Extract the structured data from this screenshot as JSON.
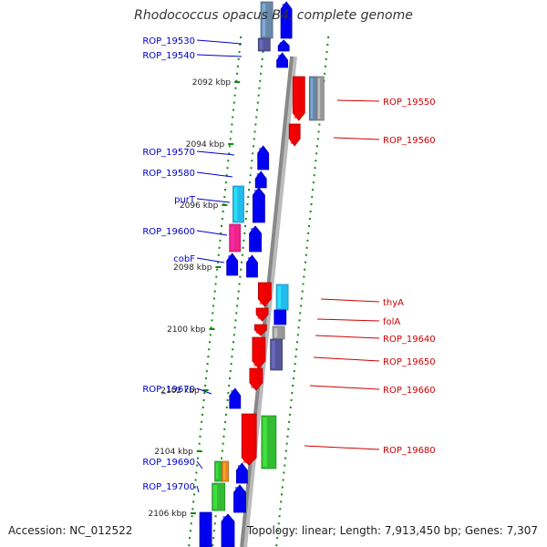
{
  "title": "Rhodococcus opacus B4, complete genome",
  "footer": {
    "accession": "Accession: NC_012522",
    "summary": "Topology: linear; Length: 7,913,450 bp; Genes: 7,307"
  },
  "colors": {
    "blue": "#0000ee",
    "red": "#ee0000",
    "cyan": "#22bbee",
    "magenta": "#ee2288",
    "green": "#33bb33",
    "orange": "#ee8822",
    "slate": "#555599",
    "steel": "#6688aa",
    "gray": "#999999",
    "axis": "#888888",
    "tick": "#118811",
    "blue_label": "#0000cc",
    "red_label": "#cc0000"
  },
  "positions": [
    {
      "label": "2092 kbp"
    },
    {
      "label": "2094 kbp"
    },
    {
      "label": "2096 kbp"
    },
    {
      "label": "2098 kbp"
    },
    {
      "label": "2100 kbp"
    },
    {
      "label": "2102 kbp"
    },
    {
      "label": "2104 kbp"
    },
    {
      "label": "2106 kbp"
    }
  ],
  "genes_left": [
    {
      "name": "ROP_19530",
      "color": "blue"
    },
    {
      "name": "ROP_19540",
      "color": "blue"
    },
    {
      "name": "ROP_19570",
      "color": "blue"
    },
    {
      "name": "ROP_19580",
      "color": "blue"
    },
    {
      "name": "purT",
      "color": "blue"
    },
    {
      "name": "ROP_19600",
      "color": "blue"
    },
    {
      "name": "cobF",
      "color": "blue"
    },
    {
      "name": "ROP_19670",
      "color": "blue"
    },
    {
      "name": "ROP_19690",
      "color": "blue"
    },
    {
      "name": "ROP_19700",
      "color": "blue"
    }
  ],
  "genes_right": [
    {
      "name": "ROP_19550",
      "color": "red"
    },
    {
      "name": "ROP_19560",
      "color": "red"
    },
    {
      "name": "thyA",
      "color": "red"
    },
    {
      "name": "folA",
      "color": "red"
    },
    {
      "name": "ROP_19640",
      "color": "red"
    },
    {
      "name": "ROP_19650",
      "color": "red"
    },
    {
      "name": "ROP_19660",
      "color": "red"
    },
    {
      "name": "ROP_19680",
      "color": "red"
    }
  ]
}
